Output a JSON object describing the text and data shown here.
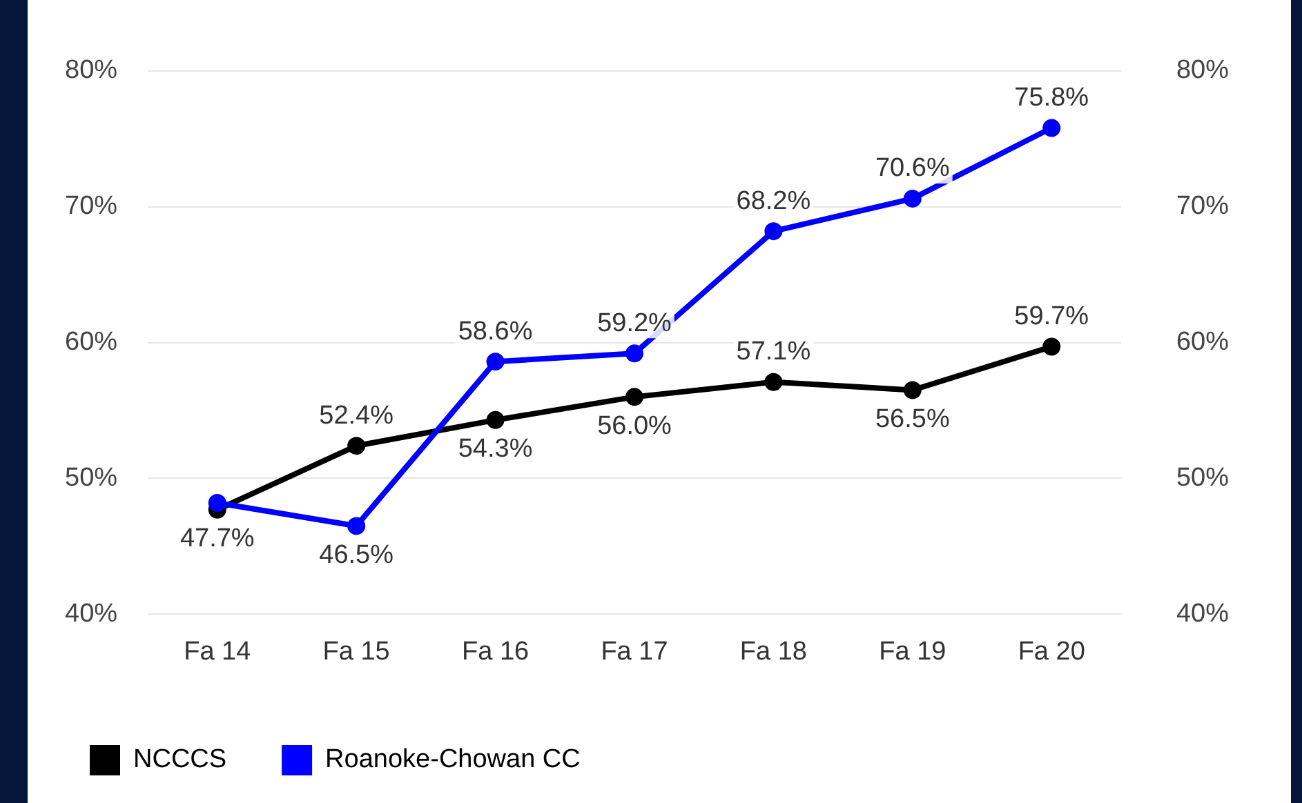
{
  "chart_data": {
    "type": "line",
    "categories": [
      "Fa 14",
      "Fa 15",
      "Fa 16",
      "Fa 17",
      "Fa 18",
      "Fa 19",
      "Fa 20"
    ],
    "series": [
      {
        "name": "NCCCS",
        "color": "#000000",
        "values": [
          47.7,
          52.4,
          54.3,
          56.0,
          57.1,
          56.5,
          59.7
        ],
        "value_labels": [
          "47.7%",
          "52.4%",
          "54.3%",
          "56.0%",
          "57.1%",
          "56.5%",
          "59.7%"
        ]
      },
      {
        "name": "Roanoke-Chowan CC",
        "color": "#0000ff",
        "values": [
          48.2,
          46.5,
          58.6,
          59.2,
          68.2,
          70.6,
          75.8
        ],
        "value_labels": [
          null,
          "46.5%",
          "58.6%",
          "59.2%",
          "68.2%",
          "70.6%",
          "75.8%"
        ]
      }
    ],
    "ylim": [
      40,
      80
    ],
    "yticks": [
      {
        "value": 40,
        "label": "40%"
      },
      {
        "value": 50,
        "label": "50%"
      },
      {
        "value": 60,
        "label": "60%"
      },
      {
        "value": 70,
        "label": "70%"
      },
      {
        "value": 80,
        "label": "80%"
      }
    ],
    "y2lim": [
      40,
      80
    ],
    "y2ticks": [
      {
        "value": 40,
        "label": "40%"
      },
      {
        "value": 50,
        "label": "50%"
      },
      {
        "value": 60,
        "label": "60%"
      },
      {
        "value": 70,
        "label": "70%"
      },
      {
        "value": 80,
        "label": "80%"
      }
    ],
    "grid": "y",
    "legend": "bottom",
    "marker": "circle",
    "line_style": "solid"
  }
}
